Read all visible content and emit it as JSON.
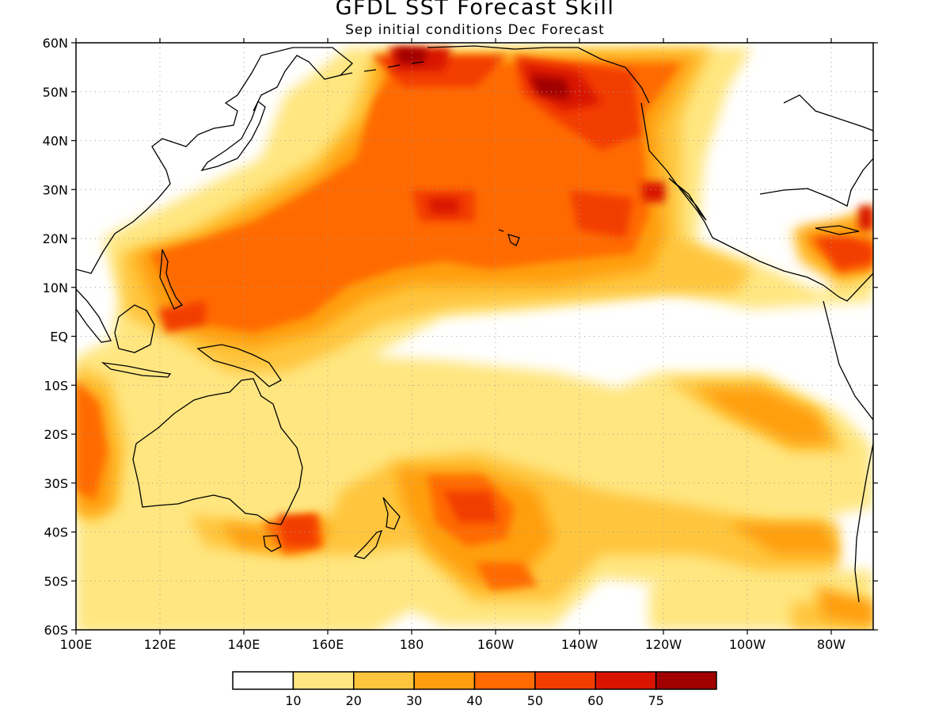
{
  "title": "GFDL SST Forecast Skill",
  "subtitle": "Sep initial conditions  Dec Forecast",
  "map": {
    "lon_range": [
      100,
      290
    ],
    "lat_range": [
      -60,
      60
    ],
    "grid": true,
    "lat_ticks": [
      "60N",
      "50N",
      "40N",
      "30N",
      "20N",
      "10N",
      "EQ",
      "10S",
      "20S",
      "30S",
      "40S",
      "50S",
      "60S"
    ],
    "lon_ticks": [
      "100E",
      "120E",
      "140E",
      "160E",
      "180",
      "160W",
      "140W",
      "120W",
      "100W",
      "80W"
    ],
    "skill_levels": [
      {
        "lower": 0,
        "color": "#ffffff"
      },
      {
        "lower": 10,
        "color": "#ffe680"
      },
      {
        "lower": 20,
        "color": "#ffc53c"
      },
      {
        "lower": 30,
        "color": "#ff9f10"
      },
      {
        "lower": 40,
        "color": "#ff6a00"
      },
      {
        "lower": 50,
        "color": "#f23d00"
      },
      {
        "lower": 60,
        "color": "#d91500"
      },
      {
        "lower": 75,
        "color": "#a00000"
      }
    ]
  },
  "colorbar": {
    "labels": [
      "10",
      "20",
      "30",
      "40",
      "50",
      "60",
      "75"
    ]
  }
}
